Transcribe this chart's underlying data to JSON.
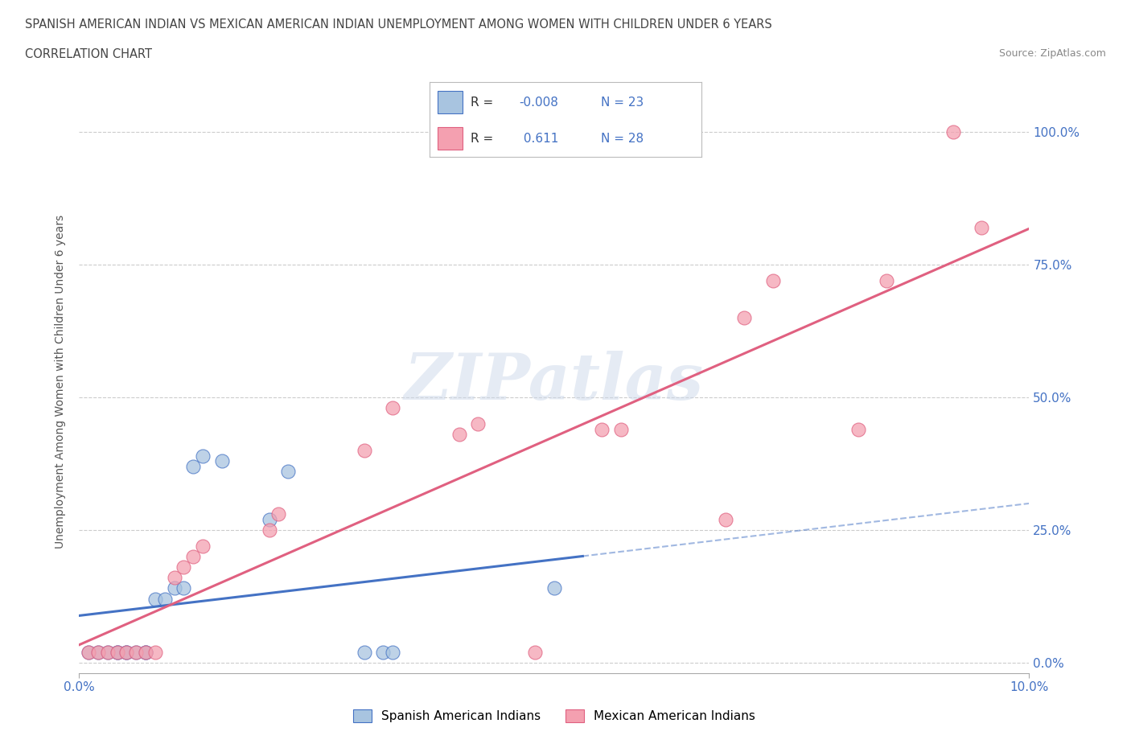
{
  "title_line1": "SPANISH AMERICAN INDIAN VS MEXICAN AMERICAN INDIAN UNEMPLOYMENT AMONG WOMEN WITH CHILDREN UNDER 6 YEARS",
  "title_line2": "CORRELATION CHART",
  "source": "Source: ZipAtlas.com",
  "ylabel": "Unemployment Among Women with Children Under 6 years",
  "xlim": [
    0.0,
    0.1
  ],
  "ylim": [
    -0.02,
    1.08
  ],
  "ytick_labels": [
    "0.0%",
    "25.0%",
    "50.0%",
    "75.0%",
    "100.0%"
  ],
  "ytick_vals": [
    0.0,
    0.25,
    0.5,
    0.75,
    1.0
  ],
  "xtick_labels": [
    "0.0%",
    "10.0%"
  ],
  "xtick_vals": [
    0.0,
    0.1
  ],
  "blue_R": -0.008,
  "blue_N": 23,
  "pink_R": 0.611,
  "pink_N": 28,
  "blue_color": "#a8c4e0",
  "pink_color": "#f4a0b0",
  "blue_line_color": "#4472c4",
  "pink_line_color": "#e06080",
  "blue_scatter": [
    [
      0.001,
      0.02
    ],
    [
      0.002,
      0.02
    ],
    [
      0.003,
      0.02
    ],
    [
      0.004,
      0.02
    ],
    [
      0.004,
      0.02
    ],
    [
      0.005,
      0.02
    ],
    [
      0.005,
      0.02
    ],
    [
      0.006,
      0.02
    ],
    [
      0.007,
      0.02
    ],
    [
      0.007,
      0.02
    ],
    [
      0.008,
      0.12
    ],
    [
      0.009,
      0.12
    ],
    [
      0.01,
      0.14
    ],
    [
      0.011,
      0.14
    ],
    [
      0.012,
      0.37
    ],
    [
      0.013,
      0.39
    ],
    [
      0.015,
      0.38
    ],
    [
      0.02,
      0.27
    ],
    [
      0.022,
      0.36
    ],
    [
      0.03,
      0.02
    ],
    [
      0.032,
      0.02
    ],
    [
      0.033,
      0.02
    ],
    [
      0.05,
      0.14
    ]
  ],
  "pink_scatter": [
    [
      0.001,
      0.02
    ],
    [
      0.002,
      0.02
    ],
    [
      0.003,
      0.02
    ],
    [
      0.004,
      0.02
    ],
    [
      0.005,
      0.02
    ],
    [
      0.006,
      0.02
    ],
    [
      0.007,
      0.02
    ],
    [
      0.008,
      0.02
    ],
    [
      0.01,
      0.16
    ],
    [
      0.011,
      0.18
    ],
    [
      0.012,
      0.2
    ],
    [
      0.013,
      0.22
    ],
    [
      0.02,
      0.25
    ],
    [
      0.021,
      0.28
    ],
    [
      0.03,
      0.4
    ],
    [
      0.033,
      0.48
    ],
    [
      0.04,
      0.43
    ],
    [
      0.042,
      0.45
    ],
    [
      0.048,
      0.02
    ],
    [
      0.055,
      0.44
    ],
    [
      0.057,
      0.44
    ],
    [
      0.068,
      0.27
    ],
    [
      0.07,
      0.65
    ],
    [
      0.073,
      0.72
    ],
    [
      0.082,
      0.44
    ],
    [
      0.085,
      0.72
    ],
    [
      0.092,
      1.0
    ],
    [
      0.095,
      0.82
    ]
  ],
  "watermark_text": "ZIPatlas",
  "background_color": "#ffffff",
  "grid_color": "#cccccc"
}
